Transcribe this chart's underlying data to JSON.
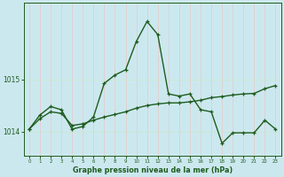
{
  "bg_color": "#cce8ef",
  "line_color": "#1e5c1e",
  "grid_color": "#b8dde6",
  "xlim": [
    -0.5,
    23.5
  ],
  "ylim": [
    1013.55,
    1016.45
  ],
  "ytick_vals": [
    1014,
    1015
  ],
  "xlabel": "Graphe pression niveau de la mer (hPa)",
  "s1_x": [
    0,
    1,
    2,
    3,
    4,
    5,
    6,
    7,
    8,
    9,
    10,
    11,
    12,
    13,
    14,
    15,
    16,
    17,
    18,
    19,
    20,
    21,
    22,
    23
  ],
  "s1_y": [
    1014.05,
    1014.32,
    1014.48,
    1014.42,
    1014.05,
    1014.1,
    1014.28,
    1014.92,
    1015.08,
    1015.18,
    1015.72,
    1016.1,
    1015.85,
    1014.72,
    1014.68,
    1014.72,
    1014.42,
    1014.38,
    1013.78,
    1013.98,
    1013.98,
    1013.98,
    1014.22,
    1014.05
  ],
  "s2_x": [
    0,
    1,
    2,
    3,
    4,
    5,
    6,
    7,
    8,
    9,
    10,
    11,
    12,
    13,
    14,
    15,
    16,
    17,
    18,
    19,
    20,
    21,
    22,
    23
  ],
  "s2_y": [
    1014.05,
    1014.25,
    1014.38,
    1014.35,
    1014.12,
    1014.15,
    1014.22,
    1014.28,
    1014.33,
    1014.38,
    1014.45,
    1014.5,
    1014.53,
    1014.55,
    1014.55,
    1014.57,
    1014.6,
    1014.65,
    1014.67,
    1014.7,
    1014.72,
    1014.73,
    1014.82,
    1014.88
  ]
}
